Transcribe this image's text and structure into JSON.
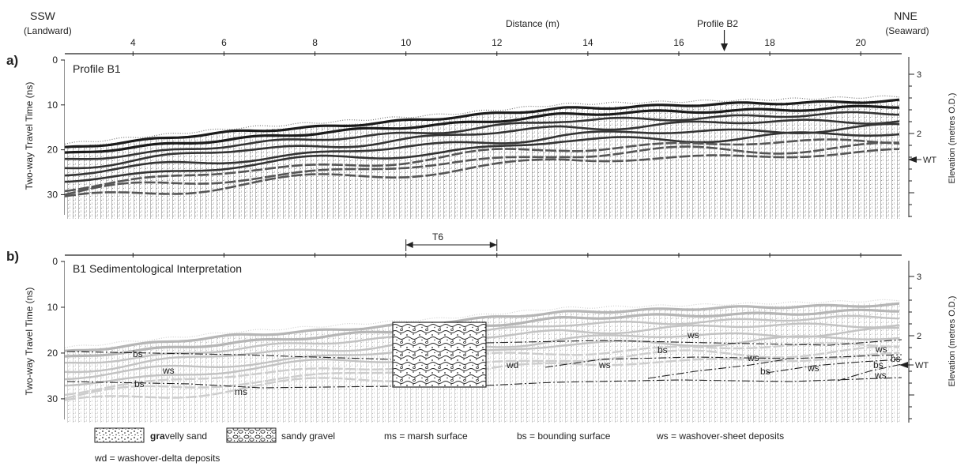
{
  "figure": {
    "direction_left": "SSW",
    "direction_left_sub": "(Landward)",
    "direction_right": "NNE",
    "direction_right_sub": "(Seaward)",
    "distance_label": "Distance (m)",
    "profile_b2_label": "Profile B2",
    "distance_ticks": [
      "4",
      "6",
      "8",
      "10",
      "12",
      "14",
      "16",
      "18",
      "20"
    ],
    "distance_values": [
      4,
      6,
      8,
      10,
      12,
      14,
      16,
      18,
      20
    ],
    "distance_range": [
      2.5,
      20.9
    ],
    "profile_b2_at": 17.0,
    "panel_a": {
      "letter": "a)",
      "title": "Profile B1",
      "twt_ticks": [
        "0",
        "10",
        "20",
        "30"
      ],
      "twt_values": [
        0,
        10,
        20,
        30
      ],
      "twt_range": [
        0,
        34.5
      ],
      "y_label": "Two-way Travel Time (ns)",
      "elev_ticks": [
        "3",
        "2"
      ],
      "elev_label": "Elevation (metres O.D.)",
      "wt_label": "WT"
    },
    "panel_b": {
      "letter": "b)",
      "title": "B1 Sedimentological Interpretation",
      "trench_label": "T6",
      "trench_range_m": [
        10,
        12
      ],
      "twt_ticks": [
        "0",
        "10",
        "20",
        "30"
      ],
      "y_label": "Two-way Travel Time (ns)",
      "elev_ticks": [
        "3",
        "2"
      ],
      "elev_label": "Elevation (metres O.D.)",
      "wt_label": "WT",
      "annotations": [
        "bs",
        "ws",
        "bs",
        "ms",
        "wd",
        "ws",
        "bs",
        "ws",
        "bs",
        "ws",
        "bs",
        "ws",
        "bs",
        "ws",
        "ws"
      ]
    },
    "legend": {
      "gravelly_sand_bold": "gra",
      "gravelly_sand_rest": "velly sand",
      "sandy_gravel": "sandy gravel",
      "ms": "ms = marsh surface",
      "bs": "bs = bounding surface",
      "ws": "ws = washover-sheet deposits",
      "wd": "wd = washover-delta deposits"
    }
  }
}
